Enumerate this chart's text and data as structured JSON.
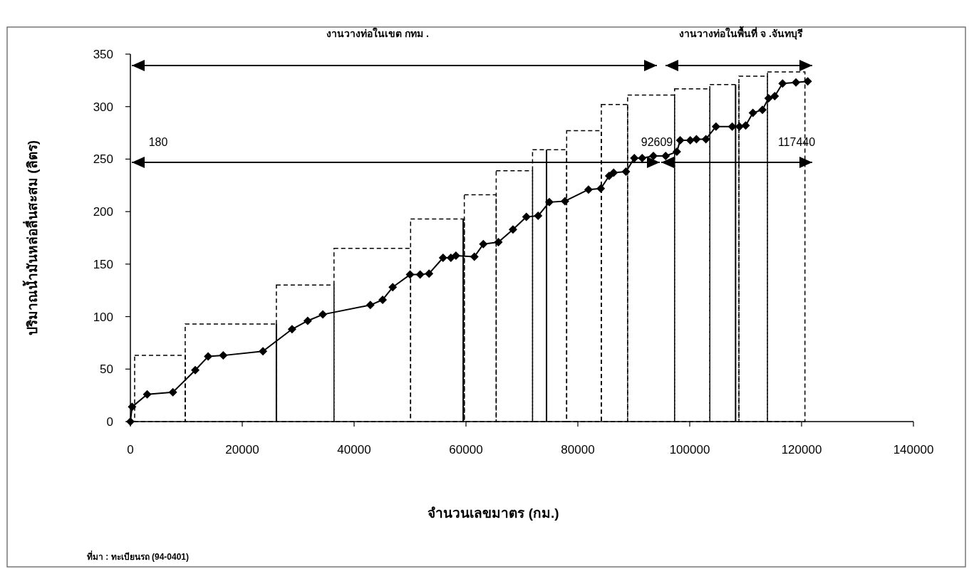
{
  "chart_data": {
    "type": "line",
    "xlabel": "จำนวนเลขมาตร (กม.)",
    "ylabel": "ปริมาณน้ำมันหล่อลื่นสะสม (ลิตร)",
    "xlim": [
      0,
      140000
    ],
    "xticks": [
      0,
      20000,
      40000,
      60000,
      80000,
      100000,
      120000,
      140000
    ],
    "ylim": [
      0,
      350
    ],
    "yticks": [
      0,
      50,
      100,
      150,
      200,
      250,
      300,
      350
    ],
    "grid": false,
    "annotations": [
      "งานวางท่อในเขต กทม .",
      "งานวางท่อในพื้นที่ จ .จันทบุรี",
      "180",
      "92609",
      "117440",
      "ที่มา : ทะเบียนรถ (94-0401)"
    ],
    "series": [
      {
        "type": "histogram",
        "color": "#000000",
        "line_style": "dashed",
        "bins": [
          760,
          9800,
          26100,
          36400,
          50100,
          59700,
          65400,
          71900,
          78000,
          84200,
          88900,
          97300,
          103600,
          108800,
          113900,
          120600
        ],
        "values": [
          63,
          93,
          130,
          165,
          193,
          216,
          239,
          259,
          277,
          302,
          311,
          317,
          321,
          329,
          333
        ]
      },
      {
        "color": "#000000",
        "marker": "diamond",
        "line_style": "solid",
        "x": [
          0,
          300,
          3000,
          7600,
          11600,
          13900,
          16600,
          23700,
          28900,
          31700,
          34400,
          42900,
          45100,
          46900,
          50000,
          51800,
          53400,
          55900,
          57300,
          58200,
          61500,
          63100,
          65800,
          68400,
          70800,
          72900,
          74900,
          77700,
          81900,
          84100,
          85600,
          86400,
          88600,
          90100,
          91500,
          93500,
          95700,
          97700,
          98300,
          100100,
          101200,
          102900,
          104700,
          107600,
          108900,
          110000,
          111300,
          113000,
          114100,
          115200,
          116600,
          119000,
          121100
        ],
        "values": [
          0,
          14,
          26,
          28,
          49,
          62,
          63,
          67,
          88,
          96,
          102,
          111,
          116,
          128,
          140,
          140,
          141,
          156,
          156,
          158,
          157,
          169,
          171,
          183,
          195,
          196,
          209,
          210,
          221,
          222,
          234,
          237,
          238,
          251,
          251,
          253,
          253,
          257,
          268,
          268,
          269,
          269,
          281,
          281,
          281,
          282,
          294,
          297,
          308,
          310,
          322,
          323,
          324
        ]
      },
      {
        "color": "#000000",
        "marker": "none",
        "line_style": "solid",
        "x": [
          26100,
          26100
        ],
        "values": [
          0,
          93
        ]
      },
      {
        "color": "#000000",
        "marker": "none",
        "line_style": "solid",
        "x": [
          59500,
          59500
        ],
        "values": [
          0,
          193
        ]
      },
      {
        "color": "#000000",
        "marker": "none",
        "line_style": "solid",
        "x": [
          74400,
          74400
        ],
        "values": [
          0,
          259
        ]
      },
      {
        "color": "#000000",
        "marker": "none",
        "line_style": "solid",
        "x": [
          108200,
          108200
        ],
        "values": [
          0,
          321
        ]
      }
    ]
  }
}
